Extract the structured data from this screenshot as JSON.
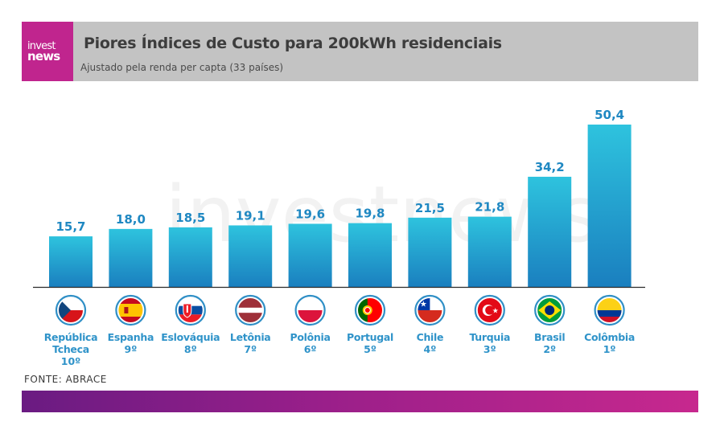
{
  "logo": {
    "line1": "invest",
    "line2": "news"
  },
  "header": {
    "title": "Piores Índices de Custo para 200kWh residenciais",
    "subtitle": "Ajustado pela renda per capta (33 países)"
  },
  "watermark": "investnews",
  "source": "FONTE: ABRACE",
  "colors": {
    "bar_top": "#2ec3de",
    "bar_bottom": "#1a7fbf",
    "value_label": "#1f88c2",
    "country_label": "#2f93c9",
    "header_bg": "#c3c3c3",
    "logo_bg": "#c0258e",
    "footer_start": "#6a1b82",
    "footer_end": "#c7288e"
  },
  "chart_data": {
    "type": "bar",
    "title": "Piores Índices de Custo para 200kWh residenciais",
    "subtitle": "Ajustado pela renda per capta (33 países)",
    "xlabel": "",
    "ylabel": "",
    "ylim": [
      0,
      50.4
    ],
    "grid": false,
    "legend": "none",
    "categories": [
      "República Tcheca",
      "Espanha",
      "Eslováquia",
      "Letônia",
      "Polônia",
      "Portugal",
      "Chile",
      "Turquia",
      "Brasil",
      "Colômbia"
    ],
    "ranks": [
      "10º",
      "9º",
      "8º",
      "7º",
      "6º",
      "5º",
      "4º",
      "3º",
      "2º",
      "1º"
    ],
    "values": [
      15.7,
      18.0,
      18.5,
      19.1,
      19.6,
      19.8,
      21.5,
      21.8,
      34.2,
      50.4
    ],
    "value_labels": [
      "15,7",
      "18,0",
      "18,5",
      "19,1",
      "19,6",
      "19,8",
      "21,5",
      "21,8",
      "34,2",
      "50,4"
    ],
    "flags": [
      "czech-flag",
      "spain-flag",
      "slovakia-flag",
      "latvia-flag",
      "poland-flag",
      "portugal-flag",
      "chile-flag",
      "turkey-flag",
      "brazil-flag",
      "colombia-flag"
    ]
  }
}
